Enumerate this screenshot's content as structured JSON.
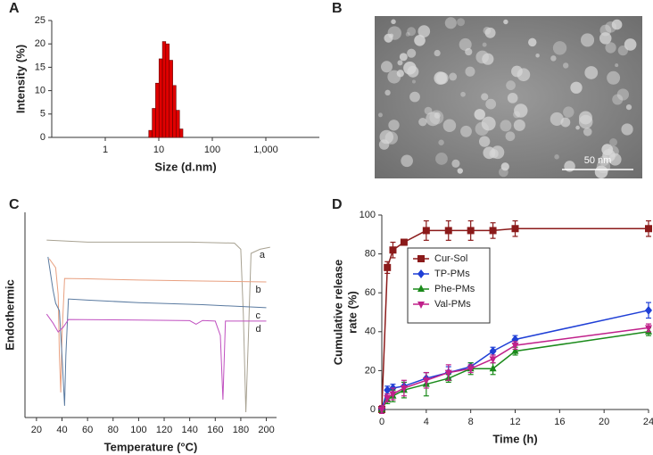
{
  "chart_data": [
    {
      "type": "histogram",
      "label": "A",
      "xlabel": "Size (d.nm)",
      "ylabel": "Intensity (%)",
      "xscale": "log",
      "bins": [
        6.5,
        7.53,
        8.72,
        10.1,
        11.7,
        13.5,
        15.7,
        18.2,
        21.0,
        24.4,
        28.2
      ],
      "values": [
        1.5,
        6.2,
        11.6,
        16.8,
        20.5,
        20.0,
        16.5,
        11.1,
        5.8,
        1.8
      ],
      "color": "#e00000",
      "xlim": [
        0.1,
        10000
      ],
      "xticks": [
        1,
        10,
        100,
        {
          "value": 1000,
          "label": "1,000"
        }
      ],
      "ylim": [
        0,
        25
      ],
      "yticks": [
        0,
        5,
        10,
        15,
        20,
        25
      ]
    },
    {
      "type": "image",
      "label": "B",
      "scale_bar": "50 nm"
    },
    {
      "type": "line",
      "label": "C",
      "xlabel": "Temperature (°C)",
      "ylabel": "Endothermic",
      "xlim": [
        11,
        208
      ],
      "xticks": [
        20,
        40,
        60,
        80,
        100,
        120,
        140,
        160,
        180,
        200
      ],
      "ylim": [
        0,
        100
      ],
      "series": [
        {
          "name": "a",
          "color": "#a8a292",
          "x": [
            28,
            60,
            100,
            140,
            175,
            180,
            182,
            184,
            186,
            188,
            195,
            203
          ],
          "values": [
            86.5,
            85.5,
            85.5,
            85.5,
            85,
            82,
            50,
            2.6,
            40,
            80,
            82,
            83
          ]
        },
        {
          "name": "b",
          "color": "#e8a080",
          "x": [
            30,
            35,
            37,
            38,
            39,
            40,
            42,
            60,
            100,
            150,
            200
          ],
          "values": [
            77.4,
            73,
            60,
            30,
            12.2,
            40,
            67.8,
            67.6,
            67,
            66.5,
            66.1
          ]
        },
        {
          "name": "c",
          "color": "#5a7aa0",
          "x": [
            29,
            33,
            35,
            38,
            40,
            42,
            43,
            45,
            60,
            100,
            150,
            200
          ],
          "values": [
            78.3,
            62,
            55.7,
            52,
            30,
            5.7,
            30,
            57.8,
            57.2,
            56,
            55,
            53.5
          ]
        },
        {
          "name": "d",
          "color": "#c050c0",
          "x": [
            28,
            33,
            37,
            41,
            45,
            100,
            140,
            145,
            150,
            160,
            164,
            166,
            168,
            175,
            200
          ],
          "values": [
            50.4,
            46,
            41.7,
            44,
            47.8,
            47.5,
            47.2,
            45.5,
            47.3,
            47,
            40,
            8.7,
            47,
            47,
            47
          ]
        }
      ]
    },
    {
      "type": "line",
      "label": "D",
      "xlabel": "Time (h)",
      "ylabel": [
        "Cumulative release",
        "rate (%)"
      ],
      "x": [
        0,
        0.5,
        1,
        2,
        4,
        6,
        8,
        10,
        12,
        24
      ],
      "xlim": [
        0,
        24
      ],
      "xticks": [
        0,
        4,
        8,
        12,
        16,
        20,
        24
      ],
      "ylim": [
        0,
        100
      ],
      "yticks": [
        0,
        20,
        40,
        60,
        80,
        100
      ],
      "series": [
        {
          "name": "Cur-Sol",
          "color": "#8b1a1a",
          "marker": "square",
          "values": [
            0,
            73,
            82,
            86,
            92,
            92,
            92,
            92,
            93,
            93
          ],
          "errors": [
            0,
            3,
            4,
            1,
            5,
            5,
            5,
            4,
            4,
            4
          ]
        },
        {
          "name": "TP-PMs",
          "color": "#1f3fd6",
          "marker": "diamond",
          "values": [
            0,
            10,
            11,
            12,
            16,
            19,
            22,
            30,
            36,
            51
          ],
          "errors": [
            1,
            2,
            2,
            2,
            3,
            3,
            2,
            2,
            2,
            4
          ]
        },
        {
          "name": "Phe-PMs",
          "color": "#1a8a1a",
          "marker": "triangle",
          "values": [
            0,
            5,
            7,
            10,
            13,
            16,
            21,
            21,
            30,
            40
          ],
          "errors": [
            2,
            2,
            3,
            4,
            6,
            2,
            3,
            3,
            2,
            2
          ]
        },
        {
          "name": "Val-PMs",
          "color": "#c0208a",
          "marker": "inverted-triangle",
          "values": [
            0,
            6,
            8,
            11,
            15,
            19,
            21,
            26,
            33,
            42
          ],
          "errors": [
            2,
            2,
            3,
            4,
            4,
            4,
            2,
            2,
            2,
            2
          ]
        }
      ]
    }
  ]
}
